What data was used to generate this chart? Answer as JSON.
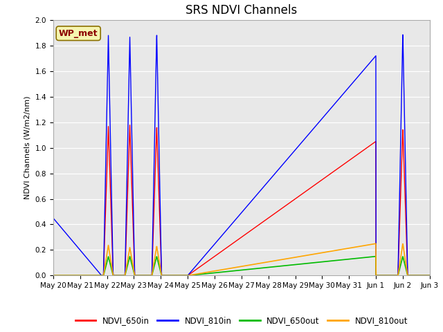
{
  "title": "SRS NDVI Channels",
  "ylabel": "NDVI Channels (W/m2/nm)",
  "ylim": [
    0.0,
    2.0
  ],
  "yticks": [
    0.0,
    0.2,
    0.4,
    0.6,
    0.8,
    1.0,
    1.2,
    1.4,
    1.6,
    1.8,
    2.0
  ],
  "background_color": "#e8e8e8",
  "annotation_text": "WP_met",
  "annotation_color": "#8b0000",
  "annotation_bg": "#f5f5b0",
  "legend_entries": [
    "NDVI_650in",
    "NDVI_810in",
    "NDVI_650out",
    "NDVI_810out"
  ],
  "line_colors": {
    "NDVI_650in": "#ff0000",
    "NDVI_810in": "#0000ff",
    "NDVI_650out": "#00bb00",
    "NDVI_810out": "#ffa500"
  },
  "x_tick_labels": [
    "May 20",
    "May 21",
    "May 22",
    "May 23",
    "May 24",
    "May 25",
    "May 26",
    "May 27",
    "May 28",
    "May 29",
    "May 30",
    "May 31",
    "Jun 1",
    "Jun 2",
    "Jun 3"
  ],
  "xlim": [
    0,
    14
  ]
}
